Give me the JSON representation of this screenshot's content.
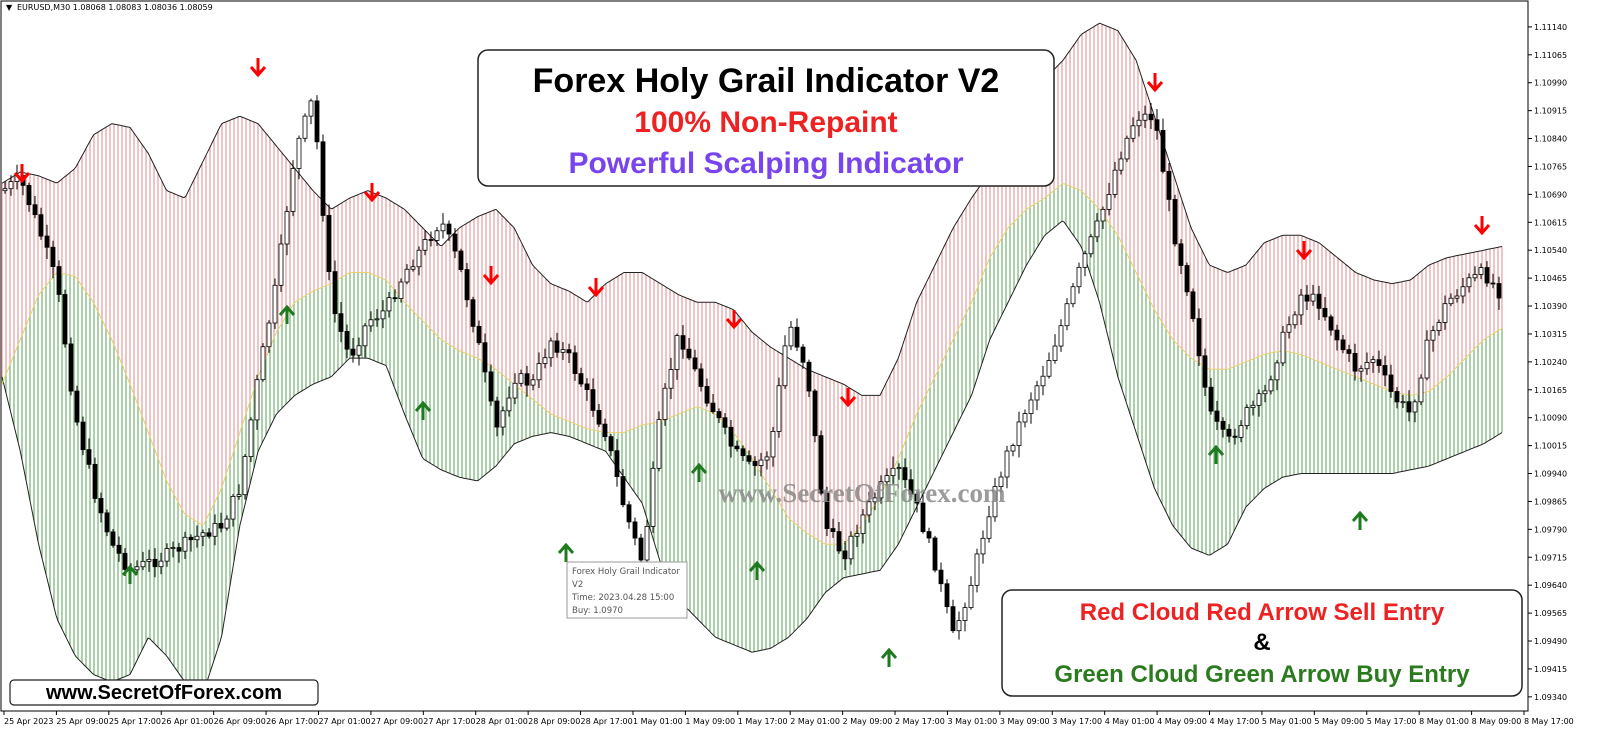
{
  "window": {
    "symbol_info": "EURUSD,M30  1.08068 1.08083 1.08036 1.08059",
    "caret": "▼"
  },
  "title_box": {
    "line1": "Forex Holy Grail Indicator V2",
    "line2": "100% Non-Repaint",
    "line3": "Powerful Scalping Indicator"
  },
  "legend_box": {
    "line1": "Red Cloud Red Arrow Sell Entry",
    "line2": "&",
    "line3": "Green Cloud Green Arrow Buy Entry"
  },
  "watermark": "www.SecretOfForex.com",
  "site_badge": "www.SecretOfForex.com",
  "tooltip": {
    "lines": [
      "Forex Holy Grail Indicator",
      "V2",
      "Time: 2023.04.28 15:00",
      "Buy: 1.0970"
    ]
  },
  "colors": {
    "background": "#ffffff",
    "sell_cloud": "#e8a4a4",
    "buy_cloud": "#7cb87c",
    "sell_arrow": "#ff0000",
    "buy_arrow": "#1e7a1e",
    "title_color": "#000000",
    "nonrepaint_color": "#ee2222",
    "scalping_color": "#7744ee",
    "legend_red": "#ee2222",
    "legend_green": "#2a7a1e"
  },
  "chart_data": {
    "type": "candlestick",
    "symbol": "EURUSD",
    "timeframe": "M30",
    "y_ticks": [
      "1.11140",
      "1.11065",
      "1.10990",
      "1.10915",
      "1.10840",
      "1.10765",
      "1.10690",
      "1.10615",
      "1.10540",
      "1.10465",
      "1.10390",
      "1.10315",
      "1.10240",
      "1.10165",
      "1.10090",
      "1.10015",
      "1.09940",
      "1.09865",
      "1.09790",
      "1.09715",
      "1.09640",
      "1.09565",
      "1.09490",
      "1.09415",
      "1.09340"
    ],
    "ylim": [
      1.0931,
      1.1118
    ],
    "x_ticks": [
      "25 Apr 2023",
      "25 Apr 09:00",
      "25 Apr 17:00",
      "26 Apr 01:00",
      "26 Apr 09:00",
      "26 Apr 17:00",
      "27 Apr 01:00",
      "27 Apr 09:00",
      "27 Apr 17:00",
      "28 Apr 01:00",
      "28 Apr 09:00",
      "28 Apr 17:00",
      "1 May 01:00",
      "1 May 09:00",
      "1 May 17:00",
      "2 May 01:00",
      "2 May 09:00",
      "2 May 17:00",
      "3 May 01:00",
      "3 May 09:00",
      "3 May 17:00",
      "4 May 01:00",
      "4 May 09:00",
      "4 May 17:00",
      "5 May 01:00",
      "5 May 09:00",
      "5 May 17:00",
      "8 May 01:00",
      "8 May 09:00",
      "8 May 17:00"
    ],
    "series": [
      {
        "name": "price",
        "values": [
          1.107,
          1.1073,
          1.106,
          1.1045,
          1.101,
          1.099,
          1.0975,
          1.0968,
          1.097,
          1.0972,
          1.0975,
          1.0978,
          1.098,
          1.099,
          1.102,
          1.1045,
          1.108,
          1.1095,
          1.104,
          1.1025,
          1.1035,
          1.1038,
          1.1048,
          1.1055,
          1.1062,
          1.105,
          1.103,
          1.1005,
          1.102,
          1.1018,
          1.103,
          1.1025,
          1.1015,
          1.1005,
          1.0985,
          1.097,
          1.101,
          1.1032,
          1.102,
          1.101,
          1.1,
          1.0995,
          1.1,
          1.1035,
          1.1022,
          1.098,
          1.0972,
          1.0982,
          1.099,
          1.0995,
          1.0985,
          1.097,
          1.095,
          1.0965,
          1.0985,
          1.1,
          1.1012,
          1.1022,
          1.1035,
          1.105,
          1.1062,
          1.1078,
          1.109,
          1.109,
          1.106,
          1.104,
          1.101,
          1.1002,
          1.101,
          1.1015,
          1.103,
          1.1042,
          1.104,
          1.103,
          1.1022,
          1.1025,
          1.1015,
          1.101,
          1.103,
          1.104,
          1.1045,
          1.1048,
          1.1042
        ]
      },
      {
        "name": "upper_band",
        "values": [
          1.1072,
          1.1075,
          1.1074,
          1.1072,
          1.1076,
          1.1085,
          1.1088,
          1.1087,
          1.108,
          1.107,
          1.1068,
          1.1078,
          1.1088,
          1.109,
          1.1088,
          1.1082,
          1.1076,
          1.107,
          1.1065,
          1.1068,
          1.107,
          1.1068,
          1.1065,
          1.106,
          1.1055,
          1.106,
          1.1063,
          1.1065,
          1.106,
          1.105,
          1.1045,
          1.1043,
          1.104,
          1.1045,
          1.1048,
          1.1048,
          1.1045,
          1.1042,
          1.104,
          1.104,
          1.1038,
          1.1032,
          1.1028,
          1.1025,
          1.1022,
          1.102,
          1.1018,
          1.1015,
          1.1015,
          1.1025,
          1.104,
          1.105,
          1.106,
          1.1068,
          1.1075,
          1.1085,
          1.1095,
          1.11,
          1.1105,
          1.1112,
          1.1115,
          1.1113,
          1.1105,
          1.109,
          1.1075,
          1.106,
          1.105,
          1.1048,
          1.105,
          1.1056,
          1.1058,
          1.1058,
          1.1056,
          1.1052,
          1.1048,
          1.1046,
          1.1045,
          1.1046,
          1.105,
          1.1052,
          1.1053,
          1.1054,
          1.1055
        ]
      },
      {
        "name": "mid_line",
        "values": [
          1.1018,
          1.103,
          1.1042,
          1.1048,
          1.1047,
          1.104,
          1.103,
          1.1018,
          1.1005,
          1.0992,
          1.0983,
          1.098,
          1.099,
          1.1005,
          1.102,
          1.1032,
          1.104,
          1.1043,
          1.1045,
          1.1048,
          1.1048,
          1.1046,
          1.104,
          1.1035,
          1.103,
          1.1027,
          1.1025,
          1.1022,
          1.1018,
          1.1014,
          1.101,
          1.1008,
          1.1006,
          1.1005,
          1.1005,
          1.1007,
          1.1008,
          1.101,
          1.1012,
          1.101,
          1.1005,
          1.0998,
          1.099,
          1.0982,
          1.0978,
          1.0975,
          1.0975,
          1.098,
          1.0988,
          1.0998,
          1.101,
          1.102,
          1.103,
          1.104,
          1.1052,
          1.106,
          1.1065,
          1.1068,
          1.1072,
          1.107,
          1.1065,
          1.1058,
          1.1048,
          1.1038,
          1.103,
          1.1025,
          1.1022,
          1.1022,
          1.1024,
          1.1026,
          1.1027,
          1.1026,
          1.1024,
          1.1022,
          1.102,
          1.1018,
          1.1016,
          1.1015,
          1.1016,
          1.102,
          1.1025,
          1.103,
          1.1033
        ]
      },
      {
        "name": "lower_band",
        "values": [
          1.102,
          1.1,
          1.0975,
          1.0955,
          1.0945,
          1.094,
          1.0938,
          1.094,
          1.095,
          1.0945,
          1.0938,
          1.0935,
          1.095,
          1.098,
          1.1,
          1.101,
          1.1015,
          1.1018,
          1.102,
          1.1025,
          1.1025,
          1.1023,
          1.101,
          1.0998,
          1.0995,
          1.0993,
          1.0992,
          1.0996,
          1.1002,
          1.1004,
          1.1005,
          1.1004,
          1.1002,
          1.1,
          1.0993,
          1.0986,
          1.097,
          1.096,
          1.0955,
          1.095,
          1.0948,
          1.0946,
          1.0947,
          1.095,
          1.0955,
          1.0962,
          1.0966,
          1.0967,
          1.0968,
          1.0975,
          1.0985,
          1.0995,
          1.1005,
          1.1015,
          1.103,
          1.104,
          1.105,
          1.1058,
          1.1062,
          1.1055,
          1.104,
          1.102,
          1.1005,
          1.099,
          1.098,
          1.0974,
          1.0972,
          1.0975,
          1.0985,
          1.099,
          1.0993,
          1.0994,
          1.0994,
          1.0994,
          1.0994,
          1.0994,
          1.0994,
          1.0995,
          1.0996,
          1.0998,
          1.1,
          1.1002,
          1.1005
        ]
      }
    ],
    "signals": [
      {
        "type": "sell",
        "index": 1,
        "label": "down-arrow"
      },
      {
        "type": "sell",
        "index": 17,
        "label": "down-arrow"
      },
      {
        "type": "buy",
        "index": 7,
        "label": "up-arrow"
      },
      {
        "type": "buy",
        "index": 18,
        "label": "up-arrow"
      },
      {
        "type": "sell",
        "index": 24,
        "label": "down-arrow"
      },
      {
        "type": "buy",
        "index": 27,
        "label": "up-arrow"
      },
      {
        "type": "sell",
        "index": 31,
        "label": "down-arrow"
      },
      {
        "type": "buy",
        "index": 35,
        "label": "up-arrow"
      },
      {
        "type": "sell",
        "index": 37,
        "label": "down-arrow"
      },
      {
        "type": "buy",
        "index": 44,
        "label": "up-arrow"
      },
      {
        "type": "sell",
        "index": 46,
        "label": "down-arrow"
      },
      {
        "type": "buy",
        "index": 48,
        "label": "up-arrow"
      },
      {
        "type": "sell",
        "index": 54,
        "label": "down-arrow"
      },
      {
        "type": "buy",
        "index": 56,
        "label": "up-arrow"
      },
      {
        "type": "sell",
        "index": 73,
        "label": "down-arrow"
      },
      {
        "type": "buy",
        "index": 77,
        "label": "up-arrow"
      },
      {
        "type": "sell",
        "index": 82,
        "label": "down-arrow"
      },
      {
        "type": "buy",
        "index": 86,
        "label": "up-arrow"
      },
      {
        "type": "sell",
        "index": 95,
        "label": "down-arrow"
      }
    ]
  }
}
